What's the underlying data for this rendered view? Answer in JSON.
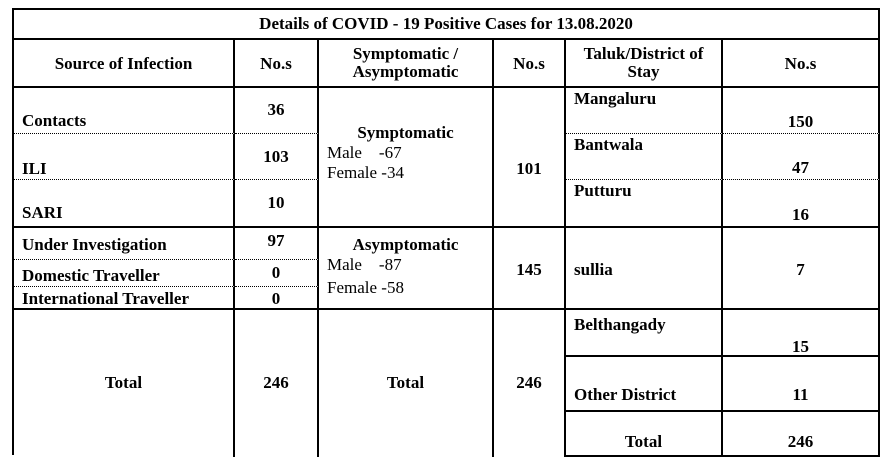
{
  "title": "Details of COVID - 19 Positive Cases for 13.08.2020",
  "headers": [
    "Source of Infection",
    "No.s",
    "Symptomatic / Asymptomatic",
    "No.s",
    "Taluk/District of Stay",
    "No.s"
  ],
  "sources": [
    {
      "label": "Contacts",
      "value": 36
    },
    {
      "label": "ILI",
      "value": 103
    },
    {
      "label": "SARI",
      "value": 10
    },
    {
      "label": "Under Investigation",
      "value": 97
    },
    {
      "label": "Domestic Traveller",
      "value": 0
    },
    {
      "label": "International Traveller",
      "value": 0
    }
  ],
  "sources_total": {
    "label": "Total",
    "value": 246
  },
  "groups": [
    {
      "label": "Symptomatic",
      "male": "Male    -67",
      "female": "Female -34",
      "value": 101
    },
    {
      "label": "Asymptomatic",
      "male": "Male    -87",
      "female": "Female -58",
      "value": 145
    }
  ],
  "groups_total": {
    "label": "Total",
    "value": 246
  },
  "taluks": [
    {
      "label": "Mangaluru",
      "value": 150
    },
    {
      "label": "Bantwala",
      "value": 47
    },
    {
      "label": "Putturu",
      "value": 16
    },
    {
      "label": "sullia",
      "value": 7
    },
    {
      "label": "Belthangady",
      "value": 15
    },
    {
      "label": "Other District",
      "value": 11
    }
  ],
  "taluks_total": {
    "label": "Total",
    "value": 246
  }
}
